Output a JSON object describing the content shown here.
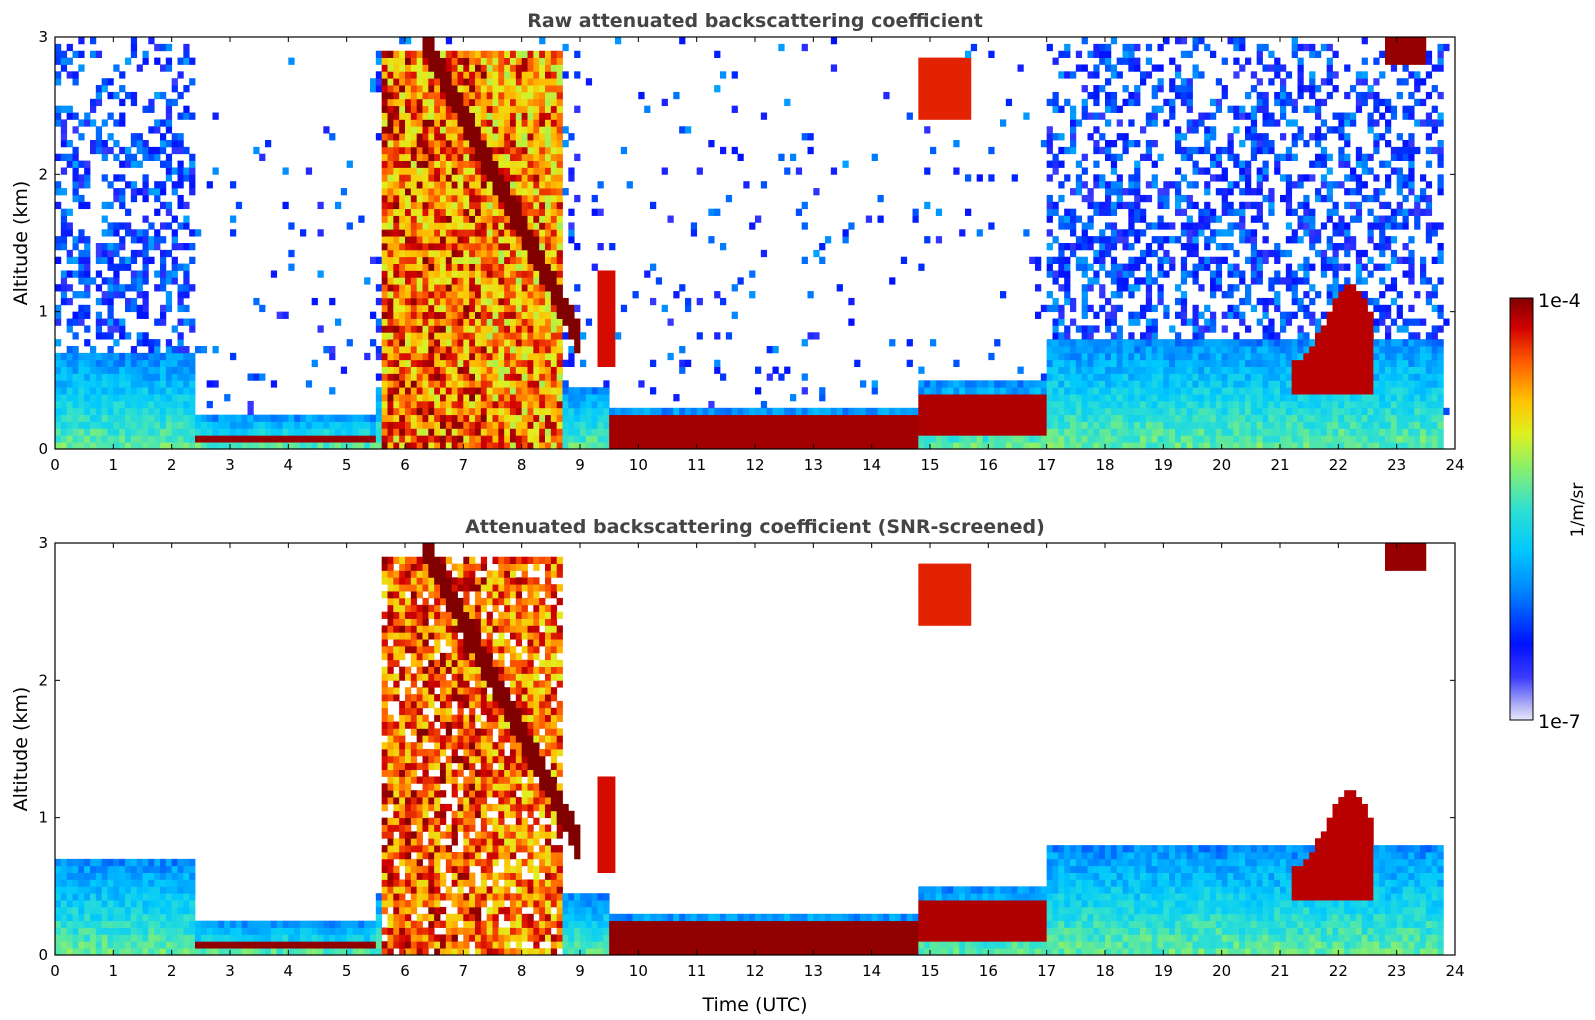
{
  "chart_data": [
    {
      "type": "heatmap",
      "title": "Raw attenuated backscattering coefficient",
      "xlabel": "",
      "ylabel": "Altitude (km)",
      "xlim": [
        0,
        24
      ],
      "ylim": [
        0,
        3
      ],
      "xticks": [
        "0",
        "1",
        "2",
        "3",
        "4",
        "5",
        "6",
        "7",
        "8",
        "9",
        "10",
        "11",
        "12",
        "13",
        "14",
        "15",
        "16",
        "17",
        "18",
        "19",
        "20",
        "21",
        "22",
        "23",
        "24"
      ],
      "yticks": [
        "0",
        "1",
        "2",
        "3"
      ],
      "screened": false,
      "layers": [
        {
          "name": "boundary layer (00-02.4 UTC)",
          "x": [
            0,
            2.4
          ],
          "top_km": 0.7
        },
        {
          "name": "nocturnal stable layer",
          "x": [
            2.4,
            5.5
          ],
          "top_km": 0.12
        },
        {
          "name": "residual aerosol layer",
          "x": [
            9.5,
            14.8
          ],
          "top_km": 0.3
        },
        {
          "name": "mixing layer",
          "x": [
            14.8,
            17
          ],
          "top_km": 0.5
        },
        {
          "name": "convective boundary layer",
          "x": [
            17,
            23.8
          ],
          "top_km": 0.8
        }
      ],
      "cloud_features": [
        {
          "name": "descending cloud layer",
          "x": [
            6.3,
            9.0
          ],
          "altitude_km": [
            3.0,
            0.8
          ]
        },
        {
          "name": "rain / precipitation columns",
          "x": [
            5.6,
            7.4
          ],
          "altitude_km": [
            0,
            3
          ]
        },
        {
          "name": "isolated cloud",
          "x": [
            9.3,
            9.6
          ],
          "altitude_km": [
            0.6,
            1.3
          ]
        },
        {
          "name": "cloud near 15 UTC",
          "x": [
            14.8,
            15.7
          ],
          "altitude_km": [
            2.4,
            2.8
          ]
        },
        {
          "name": "low clouds",
          "x": [
            21.2,
            22.6
          ],
          "altitude_km": [
            0.4,
            1.3
          ]
        },
        {
          "name": "high cloud",
          "x": [
            22.8,
            23.5
          ],
          "altitude_km": [
            2.8,
            3.0
          ]
        }
      ]
    },
    {
      "type": "heatmap",
      "title": "Attenuated backscattering coefficient (SNR-screened)",
      "xlabel": "Time (UTC)",
      "ylabel": "Altitude (km)",
      "xlim": [
        0,
        24
      ],
      "ylim": [
        0,
        3
      ],
      "xticks": [
        "0",
        "1",
        "2",
        "3",
        "4",
        "5",
        "6",
        "7",
        "8",
        "9",
        "10",
        "11",
        "12",
        "13",
        "14",
        "15",
        "16",
        "17",
        "18",
        "19",
        "20",
        "21",
        "22",
        "23",
        "24"
      ],
      "yticks": [
        "0",
        "1",
        "2",
        "3"
      ],
      "screened": true
    }
  ],
  "colorbar": {
    "label": "1/m/sr",
    "max_label": "1e-4",
    "min_label": "1e-7",
    "range": [
      1e-07,
      0.0001
    ],
    "scale": "log",
    "colormap": "jet"
  }
}
